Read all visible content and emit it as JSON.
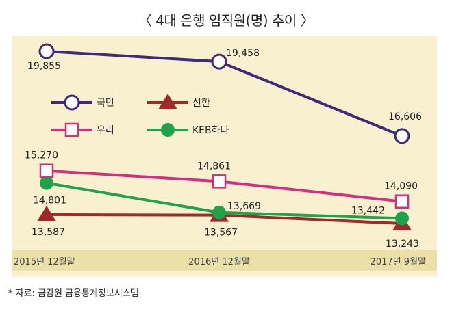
{
  "chart_data": {
    "type": "line",
    "title": "〈 4대 은행 임직원(명) 추이 〉",
    "categories": [
      "2015년 12월말",
      "2016년 12월말",
      "2017년 9월말"
    ],
    "series": [
      {
        "name": "국민",
        "values": [
          19855,
          19458,
          16606
        ],
        "color": "#3d2a78",
        "marker": "circle"
      },
      {
        "name": "신한",
        "values": [
          13587,
          13567,
          13243
        ],
        "color": "#9e2a2b",
        "marker": "triangle"
      },
      {
        "name": "우리",
        "values": [
          15270,
          14861,
          14090
        ],
        "color": "#d0317f",
        "marker": "square"
      },
      {
        "name": "KEB하나",
        "values": [
          14801,
          13669,
          13442
        ],
        "color": "#1fa34a",
        "marker": "filled-circle"
      }
    ],
    "data_labels": [
      [
        "19,855",
        "19,458",
        "16,606"
      ],
      [
        "13,587",
        "13,567",
        "13,243"
      ],
      [
        "15,270",
        "14,861",
        "14,090"
      ],
      [
        "14,801",
        "13,669",
        "13,442"
      ]
    ],
    "grid": false,
    "legend": "left"
  },
  "source": "* 자료: 금감원 금융통계정보시스템",
  "colors": {
    "panel": "#f8f0cf",
    "axis_band": "#ebe0a8"
  }
}
